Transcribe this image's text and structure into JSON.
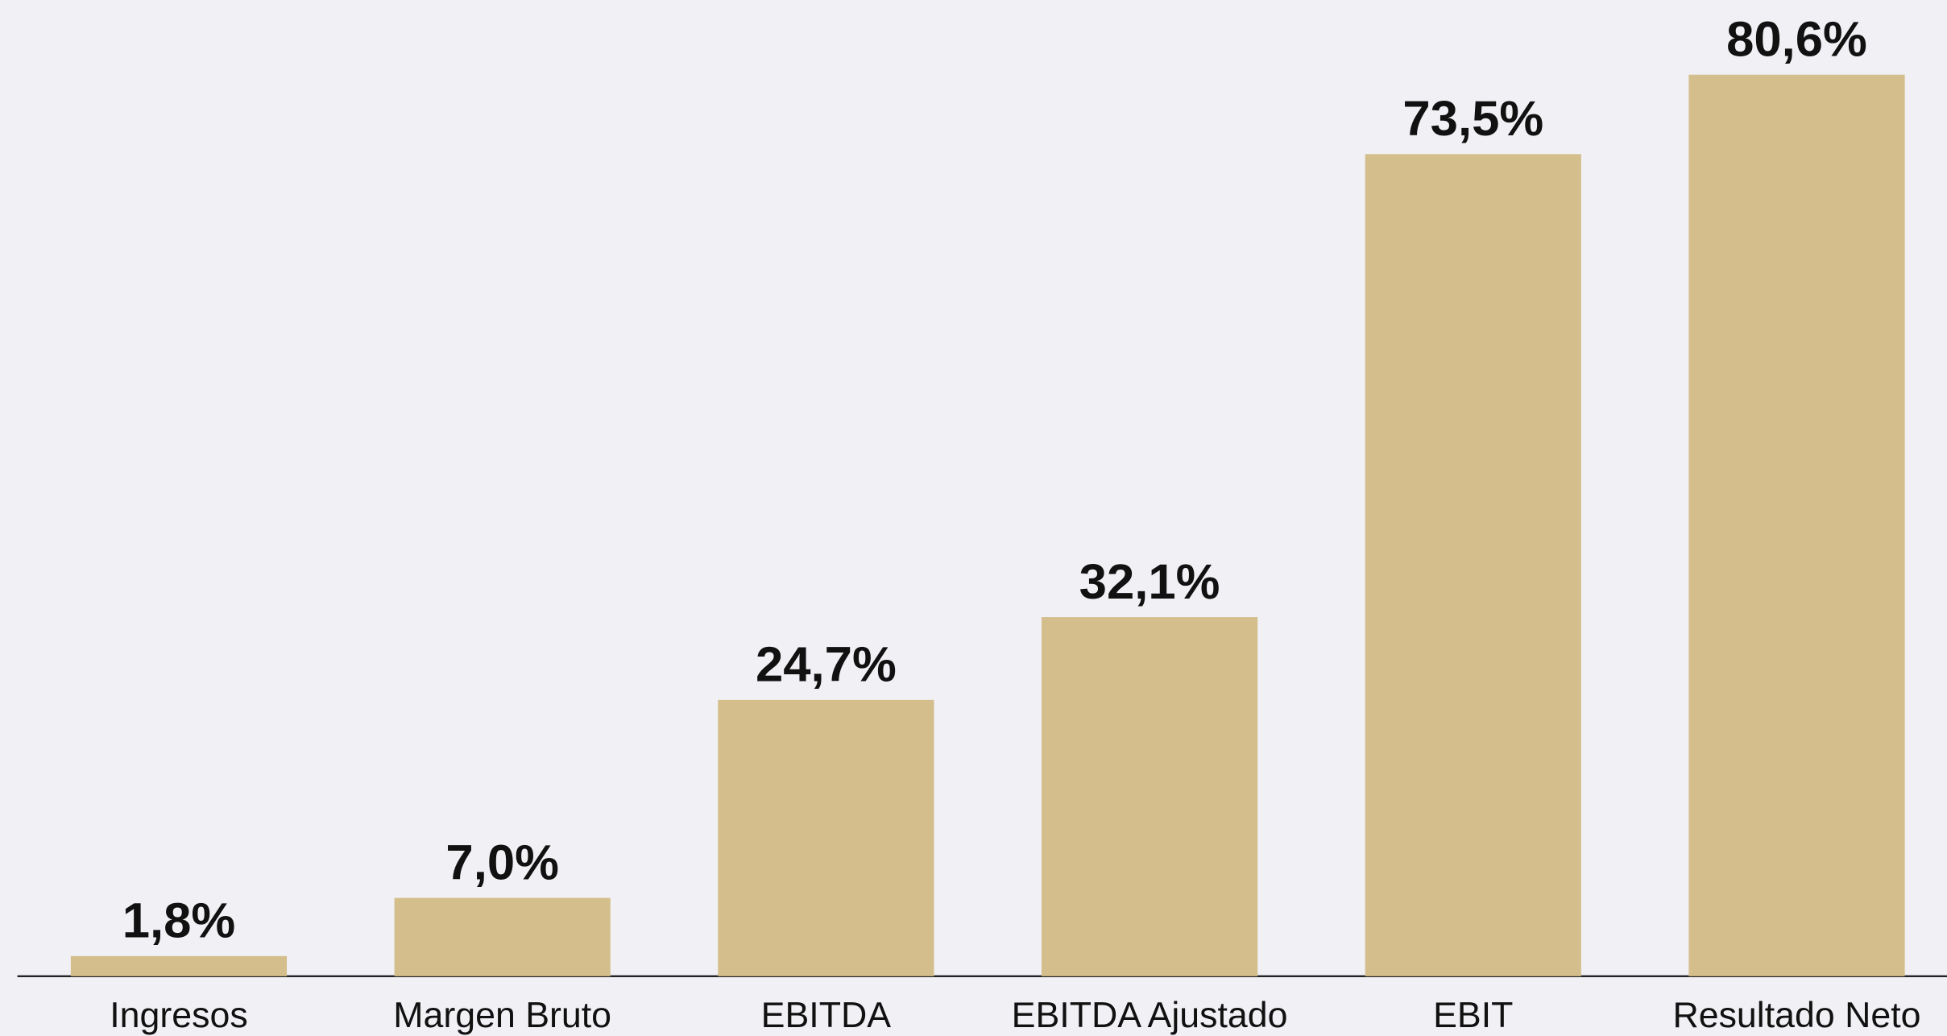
{
  "chart_data": {
    "type": "bar",
    "categories": [
      "Ingresos",
      "Margen Bruto",
      "EBITDA",
      "EBITDA Ajustado",
      "EBIT",
      "Resultado Neto"
    ],
    "values": [
      1.8,
      7.0,
      24.7,
      32.1,
      73.5,
      80.6
    ],
    "value_labels": [
      "1,8%",
      "7,0%",
      "24,7%",
      "32,1%",
      "73,5%",
      "80,6%"
    ],
    "color": "#d4bf8c"
  }
}
